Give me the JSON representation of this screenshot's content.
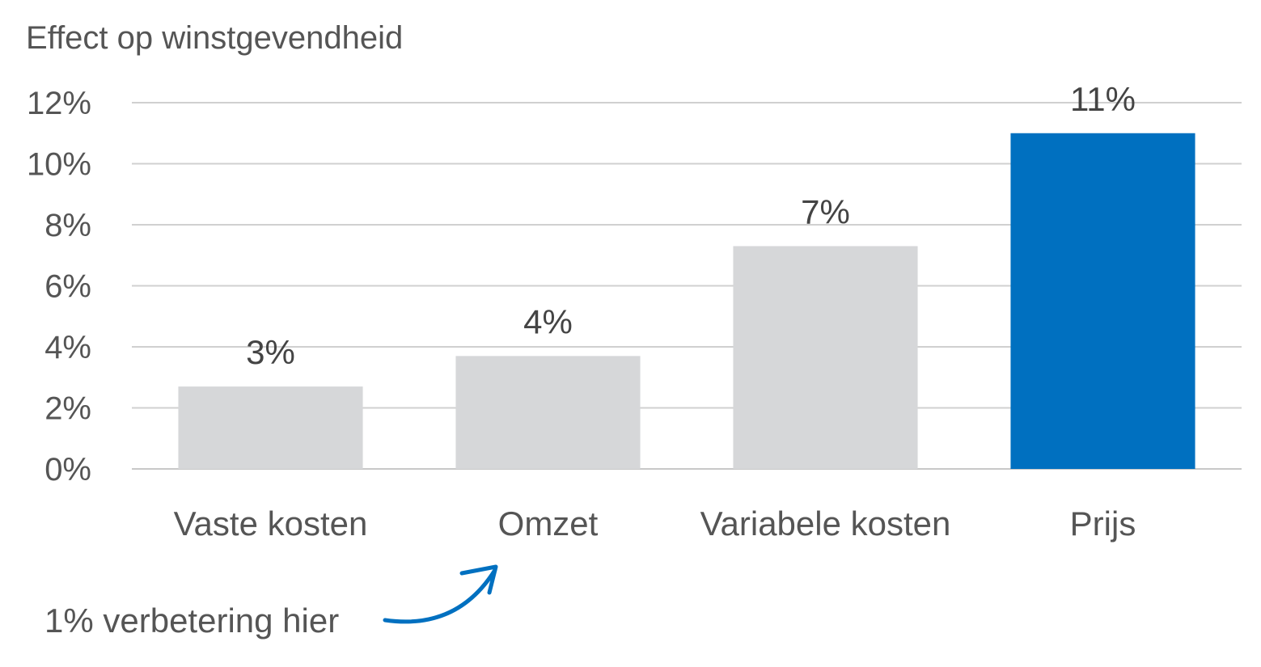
{
  "chart_data": {
    "type": "bar",
    "title": "Effect op winstgevendheid",
    "xlabel": "",
    "ylabel": "",
    "categories": [
      "Vaste kosten",
      "Omzet",
      "Variabele kosten",
      "Prijs"
    ],
    "values": [
      2.7,
      3.7,
      7.3,
      11.0
    ],
    "data_labels": [
      "3%",
      "4%",
      "7%",
      "11%"
    ],
    "ylim": [
      0,
      12
    ],
    "yticks": [
      0,
      2,
      4,
      6,
      8,
      10,
      12
    ],
    "ytick_labels": [
      "0%",
      "2%",
      "4%",
      "6%",
      "8%",
      "10%",
      "12%"
    ],
    "grid": true,
    "colors": [
      "#d6d7d9",
      "#d6d7d9",
      "#d6d7d9",
      "#0070c0"
    ],
    "annotation": {
      "text": "1% verbetering hier",
      "arrow_color": "#0070c0",
      "arrow_points_to": "Omzet"
    }
  }
}
